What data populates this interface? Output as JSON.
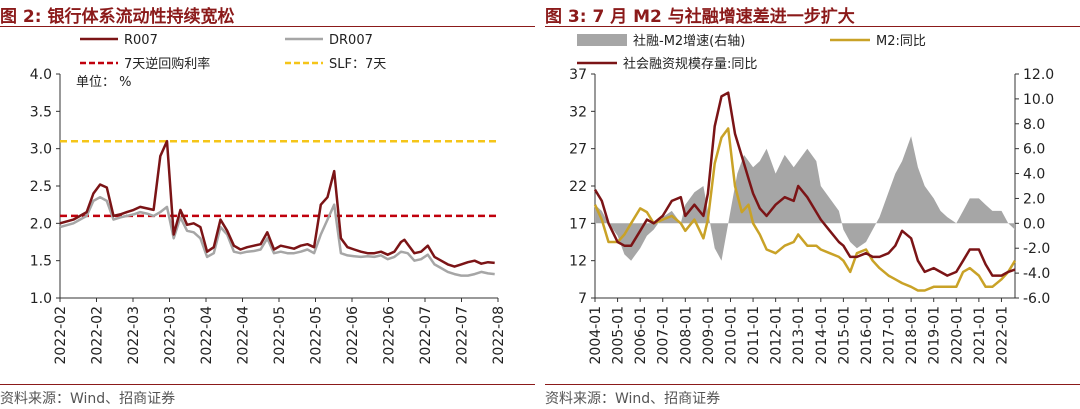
{
  "charts": [
    {
      "fig_title": "图 2:  银行体系流动性持续宽松",
      "source": "资料来源：Wind、招商证券",
      "chart_data": {
        "type": "line",
        "unit_label": "单位： %",
        "ylim": [
          1.0,
          4.0
        ],
        "yticks": [
          "1.0",
          "1.5",
          "2.0",
          "2.5",
          "3.0",
          "3.5",
          "4.0"
        ],
        "xticks": [
          "2022-02",
          "2022-02",
          "2022-03",
          "2022-03",
          "2022-04",
          "2022-04",
          "2022-05",
          "2022-05",
          "2022-06",
          "2022-06",
          "2022-07",
          "2022-07",
          "2022-08"
        ],
        "xlim_index": [
          0,
          131
        ],
        "legend": [
          "R007",
          "DR007",
          "7天逆回购利率",
          "SLF：7天"
        ],
        "series": [
          {
            "name": "R007",
            "color": "#7b1416",
            "width": 2.5,
            "x": [
              0,
              4,
              8,
              10,
              12,
              14,
              16,
              18,
              20,
              22,
              24,
              26,
              28,
              30,
              32,
              34,
              36,
              38,
              40,
              42,
              44,
              46,
              48,
              50,
              52,
              54,
              56,
              58,
              60,
              62,
              64,
              66,
              68,
              70,
              72,
              74,
              76,
              78,
              80,
              82,
              84,
              86,
              88,
              90,
              92,
              94,
              96,
              98,
              100,
              102,
              103,
              104,
              106,
              108,
              110,
              112,
              114,
              116,
              118,
              120,
              122,
              124,
              126,
              128,
              130
            ],
            "y": [
              2.0,
              2.05,
              2.15,
              2.4,
              2.52,
              2.48,
              2.1,
              2.12,
              2.15,
              2.18,
              2.22,
              2.2,
              2.18,
              2.9,
              3.1,
              1.85,
              2.18,
              1.98,
              2.0,
              1.95,
              1.62,
              1.68,
              2.05,
              1.9,
              1.7,
              1.65,
              1.68,
              1.7,
              1.72,
              1.88,
              1.65,
              1.7,
              1.68,
              1.66,
              1.7,
              1.72,
              1.68,
              2.25,
              2.35,
              2.7,
              1.8,
              1.68,
              1.65,
              1.62,
              1.6,
              1.6,
              1.62,
              1.58,
              1.62,
              1.75,
              1.78,
              1.72,
              1.6,
              1.62,
              1.7,
              1.55,
              1.5,
              1.45,
              1.42,
              1.45,
              1.48,
              1.5,
              1.46,
              1.48,
              1.47
            ]
          },
          {
            "name": "DR007",
            "color": "#a6a6a6",
            "width": 2.5,
            "x": [
              0,
              4,
              8,
              10,
              12,
              14,
              16,
              18,
              20,
              22,
              24,
              26,
              28,
              30,
              32,
              34,
              36,
              38,
              40,
              42,
              44,
              46,
              48,
              50,
              52,
              54,
              56,
              58,
              60,
              62,
              64,
              66,
              68,
              70,
              72,
              74,
              76,
              78,
              80,
              82,
              84,
              86,
              88,
              90,
              92,
              94,
              96,
              98,
              100,
              102,
              104,
              106,
              108,
              110,
              112,
              114,
              116,
              118,
              120,
              122,
              124,
              126,
              128,
              130
            ],
            "y": [
              1.95,
              2.0,
              2.1,
              2.3,
              2.35,
              2.3,
              2.05,
              2.08,
              2.1,
              2.12,
              2.15,
              2.13,
              2.1,
              2.15,
              2.22,
              1.8,
              2.08,
              1.9,
              1.88,
              1.8,
              1.55,
              1.6,
              1.95,
              1.85,
              1.62,
              1.6,
              1.62,
              1.63,
              1.65,
              1.8,
              1.6,
              1.62,
              1.6,
              1.6,
              1.62,
              1.65,
              1.6,
              1.85,
              2.05,
              2.25,
              1.6,
              1.57,
              1.56,
              1.55,
              1.56,
              1.55,
              1.57,
              1.52,
              1.55,
              1.62,
              1.6,
              1.5,
              1.52,
              1.58,
              1.45,
              1.4,
              1.35,
              1.32,
              1.3,
              1.3,
              1.32,
              1.35,
              1.33,
              1.32
            ]
          },
          {
            "name": "7天逆回购利率",
            "color": "#c0000c",
            "dash": true,
            "constant": 2.1
          },
          {
            "name": "SLF：7天",
            "color": "#f5c518",
            "dash": true,
            "constant": 3.1
          }
        ]
      }
    },
    {
      "fig_title": "图 3:   7 月 M2 与社融增速差进一步扩大",
      "source": "资料来源：Wind、招商证券",
      "chart_data": {
        "type": "line",
        "ylim": [
          7,
          37
        ],
        "yticks": [
          "7",
          "12",
          "17",
          "22",
          "27",
          "32",
          "37"
        ],
        "y2lim": [
          -6.0,
          12.0
        ],
        "y2ticks": [
          "-6.0",
          "-4.0",
          "-2.0",
          "0.0",
          "2.0",
          "4.0",
          "6.0",
          "8.0",
          "10.0",
          "12.0"
        ],
        "xticks": [
          "2004-01",
          "2005-01",
          "2006-01",
          "2007-01",
          "2008-01",
          "2009-01",
          "2010-01",
          "2011-01",
          "2012-01",
          "2013-01",
          "2014-01",
          "2015-01",
          "2016-01",
          "2017-01",
          "2018-01",
          "2019-01",
          "2020-01",
          "2021-01",
          "2022-01"
        ],
        "xlim": [
          2004.0,
          2022.6
        ],
        "legend": [
          "社融-M2增速(右轴)",
          "M2:同比",
          "社会融资规模存量:同比"
        ],
        "series": [
          {
            "name": "社融-M2增速(右轴)",
            "color": "#a6a6a6",
            "type": "area",
            "axis": "right",
            "x": [
              2004.0,
              2004.3,
              2004.6,
              2005.0,
              2005.3,
              2005.6,
              2006.0,
              2006.3,
              2006.6,
              2007.0,
              2007.4,
              2007.8,
              2008.0,
              2008.4,
              2008.8,
              2009.0,
              2009.3,
              2009.6,
              2010.0,
              2010.3,
              2010.6,
              2011.0,
              2011.3,
              2011.6,
              2012.0,
              2012.4,
              2012.8,
              2013.0,
              2013.4,
              2013.8,
              2014.0,
              2014.4,
              2014.8,
              2015.0,
              2015.3,
              2015.6,
              2016.0,
              2016.3,
              2016.6,
              2017.0,
              2017.3,
              2017.6,
              2018.0,
              2018.3,
              2018.6,
              2019.0,
              2019.3,
              2019.6,
              2020.0,
              2020.3,
              2020.6,
              2021.0,
              2021.3,
              2021.6,
              2022.0,
              2022.3,
              2022.6
            ],
            "y": [
              1.5,
              1.0,
              0.0,
              -1.0,
              -2.5,
              -3.0,
              -2.0,
              -1.0,
              -0.5,
              0.5,
              1.0,
              0.0,
              1.5,
              2.5,
              3.0,
              1.0,
              -2.0,
              -3.0,
              1.0,
              4.0,
              5.5,
              4.5,
              5.0,
              6.0,
              4.0,
              5.5,
              4.5,
              5.0,
              6.0,
              5.0,
              3.0,
              2.0,
              1.0,
              -0.5,
              -1.5,
              -2.0,
              -1.5,
              -0.5,
              0.5,
              2.5,
              4.0,
              5.0,
              7.0,
              4.5,
              3.0,
              2.0,
              1.0,
              0.5,
              0.0,
              1.0,
              2.0,
              2.0,
              1.5,
              1.0,
              1.0,
              0.0,
              -0.5
            ]
          },
          {
            "name": "M2:同比",
            "color": "#c9a227",
            "width": 2.5,
            "axis": "left",
            "x": [
              2004.0,
              2004.3,
              2004.6,
              2005.0,
              2005.3,
              2005.6,
              2006.0,
              2006.3,
              2006.6,
              2007.0,
              2007.4,
              2007.8,
              2008.0,
              2008.4,
              2008.8,
              2009.0,
              2009.3,
              2009.6,
              2009.9,
              2010.2,
              2010.5,
              2010.8,
              2011.0,
              2011.3,
              2011.6,
              2012.0,
              2012.4,
              2012.8,
              2013.0,
              2013.4,
              2013.8,
              2014.0,
              2014.4,
              2014.8,
              2015.0,
              2015.3,
              2015.6,
              2016.0,
              2016.3,
              2016.6,
              2017.0,
              2017.3,
              2017.6,
              2018.0,
              2018.3,
              2018.6,
              2019.0,
              2019.3,
              2019.6,
              2020.0,
              2020.3,
              2020.6,
              2021.0,
              2021.3,
              2021.6,
              2022.0,
              2022.3,
              2022.6
            ],
            "y": [
              19.5,
              17.5,
              14.5,
              14.5,
              15.5,
              17.0,
              19.0,
              18.5,
              17.0,
              17.5,
              18.0,
              17.0,
              16.0,
              17.5,
              15.0,
              17.5,
              25.0,
              28.5,
              29.7,
              22.0,
              18.5,
              19.5,
              17.0,
              15.5,
              13.5,
              13.0,
              14.0,
              14.5,
              15.5,
              14.0,
              14.0,
              13.5,
              13.0,
              12.5,
              12.0,
              10.5,
              13.0,
              13.5,
              12.0,
              11.0,
              10.0,
              9.5,
              9.0,
              8.5,
              8.0,
              8.0,
              8.5,
              8.5,
              8.5,
              8.5,
              10.5,
              11.0,
              10.0,
              8.5,
              8.5,
              9.5,
              10.5,
              12.0
            ]
          },
          {
            "name": "社会融资规模存量:同比",
            "color": "#7b1416",
            "width": 2.5,
            "axis": "left",
            "x": [
              2004.0,
              2004.3,
              2004.6,
              2005.0,
              2005.3,
              2005.6,
              2006.0,
              2006.3,
              2006.6,
              2007.0,
              2007.4,
              2007.8,
              2008.0,
              2008.4,
              2008.8,
              2009.0,
              2009.3,
              2009.6,
              2009.9,
              2010.2,
              2010.5,
              2010.8,
              2011.0,
              2011.3,
              2011.6,
              2012.0,
              2012.4,
              2012.8,
              2013.0,
              2013.4,
              2013.8,
              2014.0,
              2014.4,
              2014.8,
              2015.0,
              2015.3,
              2015.6,
              2016.0,
              2016.3,
              2016.6,
              2017.0,
              2017.3,
              2017.6,
              2018.0,
              2018.3,
              2018.6,
              2019.0,
              2019.3,
              2019.6,
              2020.0,
              2020.3,
              2020.6,
              2021.0,
              2021.3,
              2021.6,
              2022.0,
              2022.3,
              2022.6
            ],
            "y": [
              21.5,
              20.0,
              17.0,
              14.5,
              14.0,
              14.0,
              16.0,
              17.5,
              17.0,
              18.0,
              20.0,
              20.5,
              18.0,
              19.5,
              18.0,
              21.0,
              30.0,
              34.0,
              34.5,
              29.0,
              26.0,
              23.0,
              21.0,
              19.0,
              18.0,
              19.5,
              20.5,
              20.0,
              22.0,
              20.5,
              18.5,
              17.5,
              16.0,
              14.5,
              14.0,
              12.5,
              12.5,
              13.0,
              12.5,
              12.5,
              13.0,
              14.0,
              16.0,
              15.0,
              12.0,
              10.5,
              11.0,
              10.5,
              10.0,
              10.5,
              12.0,
              13.5,
              13.5,
              11.5,
              10.0,
              10.0,
              10.5,
              10.8
            ]
          }
        ]
      }
    }
  ]
}
